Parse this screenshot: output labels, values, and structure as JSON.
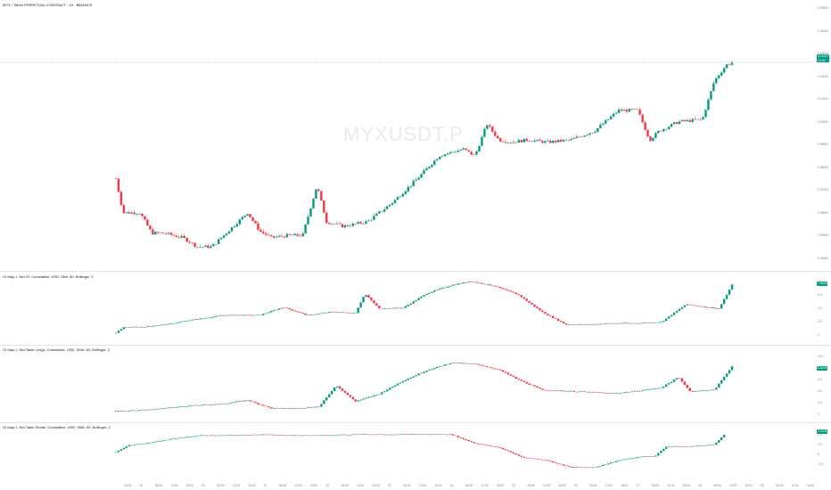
{
  "header": {
    "title": "MYX / Tether PERPETUAL CONTRACT · 1h · BINANCE",
    "watermark": "MYXUSDT.P"
  },
  "price_axis": {
    "ticks": [
      "0.15000",
      "0.14000",
      "0.13000",
      "0.12000",
      "0.11000",
      "0.10000",
      "0.09000",
      "0.08000",
      "0.07000",
      "0.06000",
      "0.05000",
      "0.04000"
    ],
    "current_price": "0.12617",
    "countdown": "12:40"
  },
  "time_axis": {
    "ticks": [
      "18:00",
      "19",
      "06:00",
      "12:00",
      "18:00",
      "20",
      "06:00",
      "12:00",
      "18:00",
      "21",
      "06:00",
      "12:00",
      "18:00",
      "22",
      "06:00",
      "12:00",
      "18:00",
      "23",
      "06:00",
      "12:00",
      "18:00",
      "24",
      "06:00",
      "12:00",
      "18:00",
      "25",
      "06:00",
      "12:00",
      "18:00",
      "26",
      "06:00",
      "12:00",
      "18:00",
      "27",
      "06:00",
      "12:00",
      "18:00",
      "28",
      "06:00",
      "12:00",
      "18:00",
      "29",
      "06:00",
      "12:00",
      "18:00"
    ]
  },
  "panes": [
    {
      "legend": "OI Map J, Net OI, Cumulative, USD, Slim, 60, Bollinger, 2",
      "ticks": [
        "8.0",
        "6.0",
        "4.0",
        "2.0",
        "0"
      ],
      "badge": "7.96 M"
    },
    {
      "legend": "OI Map J, Net Taker Longs, Cumulative, USD, SMA, 60, Bollinger, 2",
      "ticks": [
        "10.0",
        "8.0",
        "6.0",
        "4.0",
        "2.0",
        "0"
      ],
      "badge": "8.63 M"
    },
    {
      "legend": "OI Map J, Net Taker Shorts, Cumulative, USD, SMA, 60, Bollinger, 2",
      "ticks": [
        "2.0",
        "1.0",
        "0",
        "-1.0"
      ],
      "badge": "2.14 M"
    }
  ],
  "colors": {
    "up": "#089981",
    "down": "#f23645",
    "grid": "#f0f3fa",
    "axis_text": "#787b86"
  },
  "chart_data": [
    {
      "type": "candlestick",
      "title": "MYX / Tether PERPETUAL CONTRACT · 1h · BINANCE",
      "ylim": [
        0.036,
        0.152
      ],
      "x_count": 232,
      "ohlc_keypoints_close": [
        [
          0,
          0.075
        ],
        [
          3,
          0.06
        ],
        [
          10,
          0.06
        ],
        [
          15,
          0.051
        ],
        [
          20,
          0.051
        ],
        [
          28,
          0.049
        ],
        [
          34,
          0.045
        ],
        [
          40,
          0.045
        ],
        [
          48,
          0.053
        ],
        [
          55,
          0.06
        ],
        [
          60,
          0.052
        ],
        [
          65,
          0.049
        ],
        [
          72,
          0.05
        ],
        [
          78,
          0.05
        ],
        [
          84,
          0.072
        ],
        [
          88,
          0.056
        ],
        [
          95,
          0.054
        ],
        [
          105,
          0.056
        ],
        [
          115,
          0.064
        ],
        [
          125,
          0.074
        ],
        [
          135,
          0.085
        ],
        [
          145,
          0.088
        ],
        [
          150,
          0.085
        ],
        [
          155,
          0.099
        ],
        [
          160,
          0.092
        ],
        [
          165,
          0.091
        ],
        [
          172,
          0.092
        ],
        [
          180,
          0.091
        ],
        [
          190,
          0.092
        ],
        [
          200,
          0.096
        ],
        [
          210,
          0.105
        ],
        [
          218,
          0.105
        ],
        [
          223,
          0.092
        ],
        [
          227,
          0.096
        ],
        [
          235,
          0.1
        ],
        [
          245,
          0.101
        ],
        [
          250,
          0.118
        ],
        [
          255,
          0.125
        ],
        [
          258,
          0.1262
        ]
      ],
      "xlim": [
        0,
        260
      ]
    },
    {
      "type": "candlestick",
      "title": "OI Map J, Net OI, Cumulative, USD, Slim, 60, Bollinger, 2",
      "ylim": [
        -0.5,
        8.6
      ],
      "keypoints": [
        [
          0,
          0.3
        ],
        [
          3,
          1.2
        ],
        [
          15,
          1.3
        ],
        [
          30,
          2.2
        ],
        [
          45,
          3.0
        ],
        [
          60,
          3.0
        ],
        [
          70,
          4.2
        ],
        [
          80,
          3.0
        ],
        [
          90,
          3.5
        ],
        [
          100,
          3.3
        ],
        [
          104,
          6.2
        ],
        [
          110,
          4.0
        ],
        [
          120,
          4.1
        ],
        [
          130,
          6.3
        ],
        [
          140,
          7.5
        ],
        [
          148,
          8.1
        ],
        [
          158,
          7.4
        ],
        [
          168,
          6.1
        ],
        [
          178,
          3.5
        ],
        [
          188,
          1.6
        ],
        [
          198,
          1.6
        ],
        [
          208,
          1.8
        ],
        [
          218,
          1.8
        ],
        [
          228,
          2.0
        ],
        [
          238,
          4.6
        ],
        [
          245,
          4.3
        ],
        [
          252,
          4.0
        ],
        [
          258,
          7.96
        ]
      ],
      "xlim": [
        0,
        260
      ]
    },
    {
      "type": "candlestick",
      "title": "OI Map J, Net Taker Longs, Cumulative, USD, SMA, 60, Bollinger, 2",
      "ylim": [
        -0.5,
        10.8
      ],
      "keypoints": [
        [
          0,
          0.5
        ],
        [
          15,
          0.8
        ],
        [
          30,
          1.4
        ],
        [
          45,
          1.8
        ],
        [
          55,
          2.4
        ],
        [
          65,
          1.0
        ],
        [
          75,
          1.0
        ],
        [
          85,
          1.3
        ],
        [
          92,
          5.0
        ],
        [
          100,
          2.2
        ],
        [
          110,
          3.5
        ],
        [
          120,
          5.8
        ],
        [
          130,
          7.6
        ],
        [
          140,
          8.9
        ],
        [
          150,
          8.7
        ],
        [
          160,
          7.7
        ],
        [
          168,
          6.0
        ],
        [
          178,
          4.2
        ],
        [
          188,
          4.0
        ],
        [
          198,
          3.8
        ],
        [
          208,
          3.6
        ],
        [
          218,
          4.0
        ],
        [
          228,
          4.6
        ],
        [
          235,
          6.4
        ],
        [
          240,
          3.9
        ],
        [
          250,
          4.2
        ],
        [
          258,
          8.63
        ]
      ],
      "xlim": [
        0,
        260
      ]
    },
    {
      "type": "candlestick",
      "title": "OI Map J, Net Taker Shorts, Cumulative, USD, SMA, 60, Bollinger, 2",
      "ylim": [
        -1.6,
        2.5
      ],
      "keypoints": [
        [
          0,
          0.2
        ],
        [
          5,
          0.9
        ],
        [
          15,
          1.2
        ],
        [
          25,
          1.6
        ],
        [
          35,
          1.9
        ],
        [
          45,
          1.9
        ],
        [
          60,
          2.0
        ],
        [
          75,
          1.9
        ],
        [
          85,
          1.9
        ],
        [
          100,
          2.0
        ],
        [
          120,
          2.0
        ],
        [
          135,
          2.0
        ],
        [
          140,
          2.0
        ],
        [
          150,
          1.1
        ],
        [
          160,
          0.7
        ],
        [
          170,
          -0.3
        ],
        [
          180,
          -0.6
        ],
        [
          190,
          -1.3
        ],
        [
          200,
          -1.3
        ],
        [
          210,
          -0.6
        ],
        [
          220,
          -0.2
        ],
        [
          225,
          -0.2
        ],
        [
          230,
          0.8
        ],
        [
          240,
          0.8
        ],
        [
          250,
          1.0
        ],
        [
          255,
          2.14
        ]
      ],
      "xlim": [
        0,
        260
      ]
    }
  ]
}
